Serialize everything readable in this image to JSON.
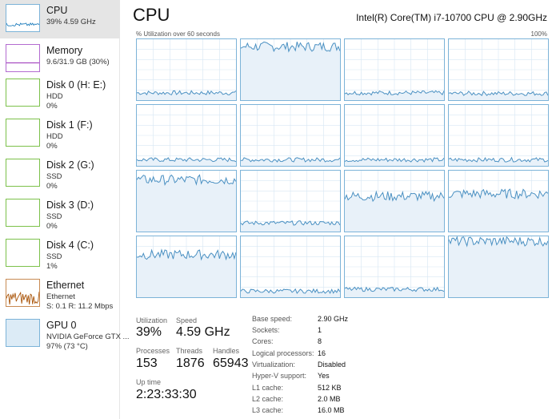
{
  "sidebar": {
    "items": [
      {
        "title": "CPU",
        "line1": "39%  4.59 GHz",
        "line2": "",
        "line3": "",
        "color": "#1779ba",
        "selected": true
      },
      {
        "title": "Memory",
        "line1": "9.6/31.9 GB (30%)",
        "line2": "",
        "line3": "",
        "color": "#8b12ae",
        "selected": false
      },
      {
        "title": "Disk 0 (H: E:)",
        "line1": "HDD",
        "line2": "0%",
        "line3": "",
        "color": "#4da60c",
        "selected": false
      },
      {
        "title": "Disk 1 (F:)",
        "line1": "HDD",
        "line2": "0%",
        "line3": "",
        "color": "#4da60c",
        "selected": false
      },
      {
        "title": "Disk 2 (G:)",
        "line1": "SSD",
        "line2": "0%",
        "line3": "",
        "color": "#4da60c",
        "selected": false
      },
      {
        "title": "Disk 3 (D:)",
        "line1": "SSD",
        "line2": "0%",
        "line3": "",
        "color": "#4da60c",
        "selected": false
      },
      {
        "title": "Disk 4 (C:)",
        "line1": "SSD",
        "line2": "1%",
        "line3": "",
        "color": "#4da60c",
        "selected": false
      },
      {
        "title": "Ethernet",
        "line1": "Ethernet",
        "line2": "S: 0.1  R: 11.2 Mbps",
        "line3": "",
        "color": "#a74f01",
        "selected": false
      },
      {
        "title": "GPU 0",
        "line1": "NVIDIA GeForce GTX ...",
        "line2": "97%  (73 °C)",
        "line3": "",
        "color": "#1779ba",
        "selected": false
      }
    ]
  },
  "header": {
    "title": "CPU",
    "cpu_model": "Intel(R) Core(TM) i7-10700 CPU @ 2.90GHz",
    "util_caption": "% Utilization over 60 seconds",
    "util_max": "100%"
  },
  "core_levels": [
    0.12,
    0.88,
    0.12,
    0.11,
    0.1,
    0.1,
    0.1,
    0.1,
    0.85,
    0.14,
    0.58,
    0.62,
    0.7,
    0.1,
    0.13,
    0.92
  ],
  "stats": {
    "utilization_label": "Utilization",
    "utilization": "39%",
    "speed_label": "Speed",
    "speed": "4.59 GHz",
    "processes_label": "Processes",
    "processes": "153",
    "threads_label": "Threads",
    "threads": "1876",
    "handles_label": "Handles",
    "handles": "65943",
    "uptime_label": "Up time",
    "uptime": "2:23:33:30"
  },
  "specs": [
    {
      "label": "Base speed:",
      "value": "2.90 GHz"
    },
    {
      "label": "Sockets:",
      "value": "1"
    },
    {
      "label": "Cores:",
      "value": "8"
    },
    {
      "label": "Logical processors:",
      "value": "16"
    },
    {
      "label": "Virtualization:",
      "value": "Disabled"
    },
    {
      "label": "Hyper-V support:",
      "value": "Yes"
    },
    {
      "label": "L1 cache:",
      "value": "512 KB"
    },
    {
      "label": "L2 cache:",
      "value": "2.0 MB"
    },
    {
      "label": "L3 cache:",
      "value": "16.0 MB"
    }
  ],
  "colors": {
    "accent": "#1779ba",
    "graph_line": "#4a90c2",
    "graph_fill": "#e8f1f9",
    "grid_line": "#d7e7f3"
  }
}
